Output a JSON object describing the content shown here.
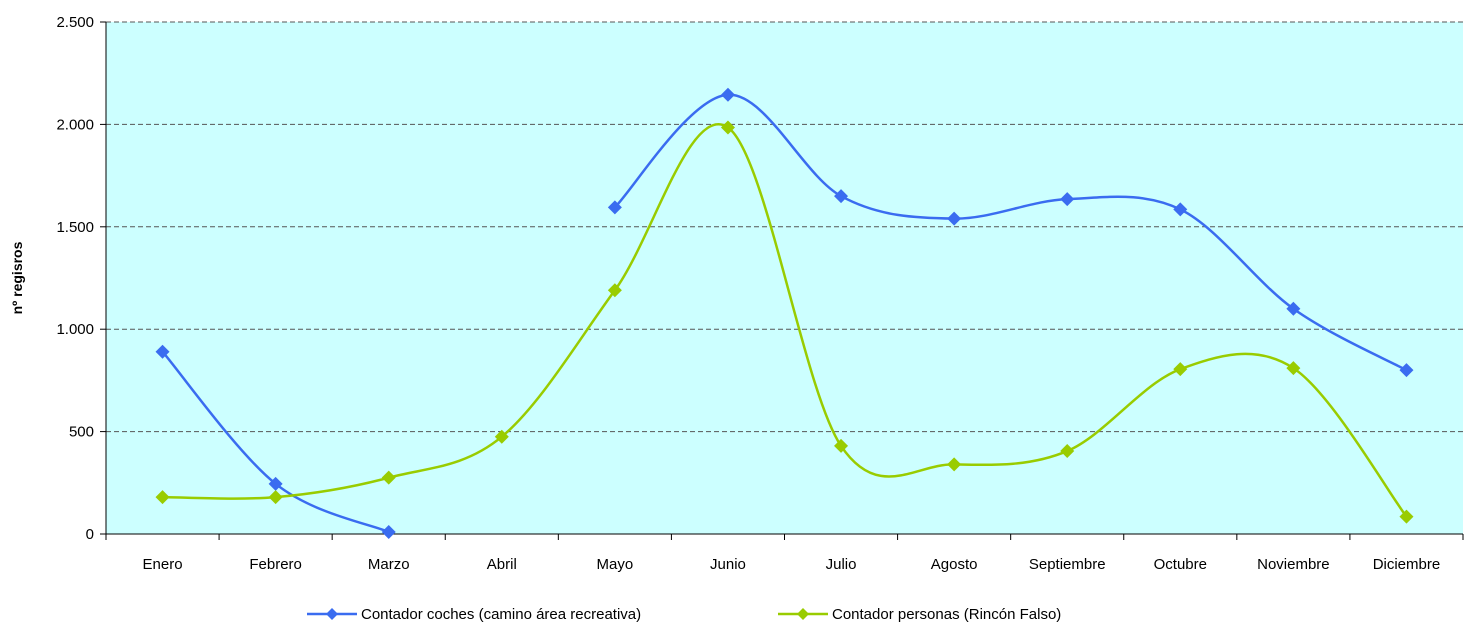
{
  "chart_data": {
    "type": "line",
    "smooth": true,
    "title": "",
    "xlabel": "",
    "ylabel": "nº regisros",
    "categories": [
      "Enero",
      "Febrero",
      "Marzo",
      "Abril",
      "Mayo",
      "Junio",
      "Julio",
      "Agosto",
      "Septiembre",
      "Octubre",
      "Noviembre",
      "Diciembre"
    ],
    "ylim": [
      0,
      2500
    ],
    "yticks": [
      0,
      500,
      1000,
      1500,
      2000,
      2500
    ],
    "ytick_labels": [
      "0",
      "500",
      "1.000",
      "1.500",
      "2.000",
      "2.500"
    ],
    "grid": "horizontal dashed",
    "plot_background": "#ccffff",
    "legend_position": "bottom",
    "series": [
      {
        "name": "Contador coches (camino área recreativa)",
        "color": "#3a6cf0",
        "marker": "diamond",
        "values": [
          890,
          245,
          10,
          null,
          1595,
          2145,
          1650,
          1540,
          1635,
          1585,
          1100,
          800
        ]
      },
      {
        "name": "Contador personas (Rincón Falso)",
        "color": "#99cc00",
        "marker": "diamond",
        "values": [
          180,
          180,
          275,
          475,
          1190,
          1985,
          430,
          340,
          405,
          805,
          810,
          85
        ]
      }
    ]
  }
}
